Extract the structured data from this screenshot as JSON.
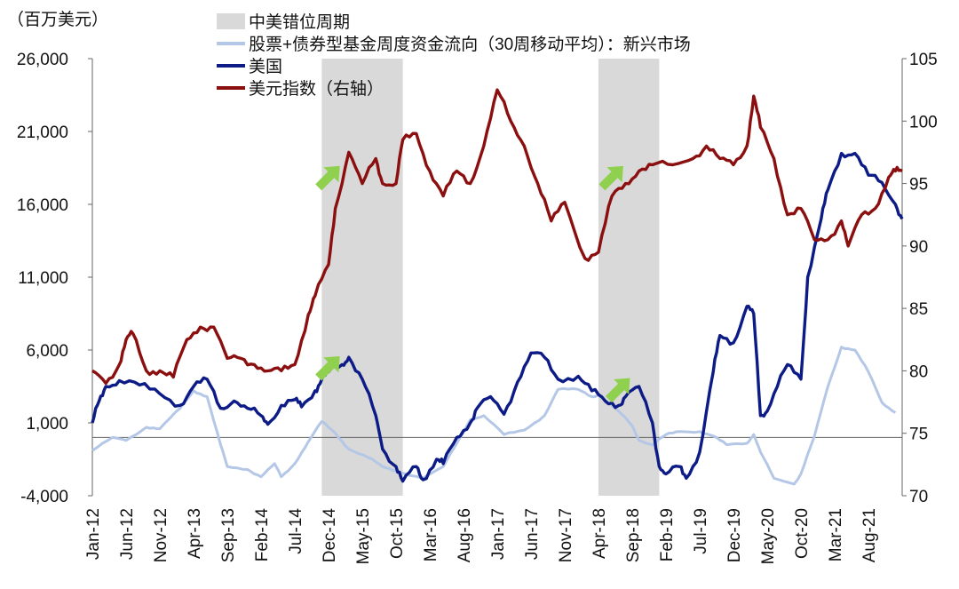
{
  "chart_data": {
    "type": "line",
    "unit_label": "（百万美元）",
    "left_axis": {
      "range": [
        -4000,
        26000
      ],
      "ticks": [
        {
          "value": 26000,
          "label": "26,000"
        },
        {
          "value": 21000,
          "label": "21,000"
        },
        {
          "value": 16000,
          "label": "16,000"
        },
        {
          "value": 11000,
          "label": "11,000"
        },
        {
          "value": 6000,
          "label": "6,000"
        },
        {
          "value": 1000,
          "label": "1,000"
        },
        {
          "value": -4000,
          "label": "-4,000"
        }
      ],
      "negative_color": "#e00000"
    },
    "right_axis": {
      "range": [
        70,
        105
      ],
      "ticks": [
        {
          "value": 105,
          "label": "105"
        },
        {
          "value": 100,
          "label": "100"
        },
        {
          "value": 95,
          "label": "95"
        },
        {
          "value": 90,
          "label": "90"
        },
        {
          "value": 85,
          "label": "85"
        },
        {
          "value": 80,
          "label": "80"
        },
        {
          "value": 75,
          "label": "75"
        },
        {
          "value": 70,
          "label": "70"
        }
      ]
    },
    "x_axis": {
      "range": [
        "2012-01",
        "2022-01"
      ],
      "ticks": [
        {
          "value": "2012-01",
          "label": "Jan-12"
        },
        {
          "value": "2012-06",
          "label": "Jun-12"
        },
        {
          "value": "2012-11",
          "label": "Nov-12"
        },
        {
          "value": "2013-04",
          "label": "Apr-13"
        },
        {
          "value": "2013-09",
          "label": "Sep-13"
        },
        {
          "value": "2014-02",
          "label": "Feb-14"
        },
        {
          "value": "2014-07",
          "label": "Jul-14"
        },
        {
          "value": "2014-12",
          "label": "Dec-14"
        },
        {
          "value": "2015-05",
          "label": "May-15"
        },
        {
          "value": "2015-10",
          "label": "Oct-15"
        },
        {
          "value": "2016-03",
          "label": "Mar-16"
        },
        {
          "value": "2016-08",
          "label": "Aug-16"
        },
        {
          "value": "2017-01",
          "label": "Jan-17"
        },
        {
          "value": "2017-06",
          "label": "Jun-17"
        },
        {
          "value": "2017-11",
          "label": "Nov-17"
        },
        {
          "value": "2018-04",
          "label": "Apr-18"
        },
        {
          "value": "2018-09",
          "label": "Sep-18"
        },
        {
          "value": "2019-02",
          "label": "Feb-19"
        },
        {
          "value": "2019-07",
          "label": "Jul-19"
        },
        {
          "value": "2019-12",
          "label": "Dec-19"
        },
        {
          "value": "2020-05",
          "label": "May-20"
        },
        {
          "value": "2020-10",
          "label": "Oct-20"
        },
        {
          "value": "2021-03",
          "label": "Mar-21"
        },
        {
          "value": "2021-08",
          "label": "Aug-21"
        }
      ]
    },
    "shaded_periods": [
      {
        "name": "中美错位周期",
        "start": "2014-11",
        "end": "2015-11"
      },
      {
        "name": "中美错位周期",
        "start": "2018-04",
        "end": "2019-01"
      }
    ],
    "legend": [
      {
        "label": "中美错位周期",
        "kind": "area",
        "color": "#d9d9d9"
      },
      {
        "label": "股票+债券型基金周度资金流向（30周移动平均）：新兴市场",
        "kind": "line",
        "color": "#b4c7e7"
      },
      {
        "label": "美国",
        "kind": "line",
        "color": "#0c1b86"
      },
      {
        "label": "美元指数（右轴）",
        "kind": "line",
        "color": "#8b0f0f"
      }
    ],
    "series": [
      {
        "name": "股票+债券型基金周度资金流向（30周移动平均）：新兴市场",
        "axis": "left",
        "color": "#b4c7e7",
        "points": [
          [
            "2012-01",
            -900
          ],
          [
            "2012-04",
            0
          ],
          [
            "2012-06",
            -200
          ],
          [
            "2012-09",
            700
          ],
          [
            "2012-11",
            600
          ],
          [
            "2013-02",
            2000
          ],
          [
            "2013-04",
            3200
          ],
          [
            "2013-06",
            2800
          ],
          [
            "2013-08",
            -500
          ],
          [
            "2013-09",
            -2000
          ],
          [
            "2013-12",
            -2200
          ],
          [
            "2014-02",
            -2700
          ],
          [
            "2014-04",
            -1800
          ],
          [
            "2014-05",
            -2700
          ],
          [
            "2014-07",
            -1800
          ],
          [
            "2014-09",
            -300
          ],
          [
            "2014-11",
            1100
          ],
          [
            "2015-01",
            300
          ],
          [
            "2015-03",
            -800
          ],
          [
            "2015-06",
            -1400
          ],
          [
            "2015-08",
            -2000
          ],
          [
            "2015-10",
            -2300
          ],
          [
            "2016-02",
            -2800
          ],
          [
            "2016-05",
            -2000
          ],
          [
            "2016-07",
            -400
          ],
          [
            "2016-09",
            1200
          ],
          [
            "2016-11",
            1500
          ],
          [
            "2017-02",
            200
          ],
          [
            "2017-05",
            500
          ],
          [
            "2017-08",
            1500
          ],
          [
            "2017-10",
            3300
          ],
          [
            "2018-01",
            3300
          ],
          [
            "2018-03",
            2800
          ],
          [
            "2018-04",
            2900
          ],
          [
            "2018-07",
            1800
          ],
          [
            "2018-09",
            800
          ],
          [
            "2018-10",
            -200
          ],
          [
            "2018-12",
            -500
          ],
          [
            "2019-02",
            200
          ],
          [
            "2019-04",
            400
          ],
          [
            "2019-07",
            400
          ],
          [
            "2019-09",
            100
          ],
          [
            "2019-11",
            -500
          ],
          [
            "2020-02",
            -400
          ],
          [
            "2020-03",
            200
          ],
          [
            "2020-04",
            -1000
          ],
          [
            "2020-06",
            -2800
          ],
          [
            "2020-09",
            -3200
          ],
          [
            "2020-10",
            -2500
          ],
          [
            "2020-12",
            100
          ],
          [
            "2021-02",
            3500
          ],
          [
            "2021-04",
            6200
          ],
          [
            "2021-06",
            6000
          ],
          [
            "2021-08",
            4500
          ],
          [
            "2021-10",
            2400
          ],
          [
            "2021-12",
            1700
          ]
        ]
      },
      {
        "name": "美国",
        "axis": "left",
        "color": "#0c1b86",
        "points": [
          [
            "2012-01",
            1000
          ],
          [
            "2012-02",
            2500
          ],
          [
            "2012-03",
            3500
          ],
          [
            "2012-05",
            3900
          ],
          [
            "2012-08",
            3600
          ],
          [
            "2012-11",
            3000
          ],
          [
            "2013-02",
            2200
          ],
          [
            "2013-04",
            3500
          ],
          [
            "2013-06",
            4000
          ],
          [
            "2013-08",
            2000
          ],
          [
            "2013-10",
            2500
          ],
          [
            "2013-12",
            2000
          ],
          [
            "2014-02",
            1500
          ],
          [
            "2014-03",
            900
          ],
          [
            "2014-05",
            2200
          ],
          [
            "2014-07",
            2600
          ],
          [
            "2014-08",
            2100
          ],
          [
            "2014-10",
            3200
          ],
          [
            "2014-11",
            4000
          ],
          [
            "2014-12",
            4500
          ],
          [
            "2015-02",
            5000
          ],
          [
            "2015-03",
            5500
          ],
          [
            "2015-05",
            4000
          ],
          [
            "2015-07",
            1500
          ],
          [
            "2015-08",
            -800
          ],
          [
            "2015-10",
            -2000
          ],
          [
            "2015-11",
            -3000
          ],
          [
            "2016-01",
            -2000
          ],
          [
            "2016-02",
            -2900
          ],
          [
            "2016-04",
            -1500
          ],
          [
            "2016-05",
            -1800
          ],
          [
            "2016-07",
            0
          ],
          [
            "2016-09",
            1000
          ],
          [
            "2016-10",
            2000
          ],
          [
            "2016-12",
            2800
          ],
          [
            "2017-02",
            1600
          ],
          [
            "2017-04",
            3800
          ],
          [
            "2017-06",
            5800
          ],
          [
            "2017-08",
            5500
          ],
          [
            "2017-10",
            4000
          ],
          [
            "2018-01",
            4200
          ],
          [
            "2018-03",
            3200
          ],
          [
            "2018-05",
            2500
          ],
          [
            "2018-07",
            2200
          ],
          [
            "2018-08",
            2800
          ],
          [
            "2018-10",
            3500
          ],
          [
            "2018-12",
            1000
          ],
          [
            "2019-01",
            -2000
          ],
          [
            "2019-02",
            -2500
          ],
          [
            "2019-04",
            -2000
          ],
          [
            "2019-05",
            -2800
          ],
          [
            "2019-07",
            -1000
          ],
          [
            "2019-09",
            4500
          ],
          [
            "2019-10",
            7000
          ],
          [
            "2019-12",
            6500
          ],
          [
            "2020-02",
            9000
          ],
          [
            "2020-03",
            8500
          ],
          [
            "2020-04",
            1500
          ],
          [
            "2020-05",
            1800
          ],
          [
            "2020-06",
            3000
          ],
          [
            "2020-08",
            5000
          ],
          [
            "2020-10",
            4000
          ],
          [
            "2020-11",
            11000
          ],
          [
            "2021-01",
            15000
          ],
          [
            "2021-02",
            17000
          ],
          [
            "2021-04",
            19500
          ],
          [
            "2021-06",
            19500
          ],
          [
            "2021-08",
            18000
          ],
          [
            "2021-10",
            17500
          ],
          [
            "2021-12",
            16000
          ],
          [
            "2022-01",
            15000
          ]
        ]
      },
      {
        "name": "美元指数（右轴）",
        "axis": "right",
        "color": "#8b0f0f",
        "points": [
          [
            "2012-01",
            80
          ],
          [
            "2012-03",
            79
          ],
          [
            "2012-05",
            80.5
          ],
          [
            "2012-06",
            82.5
          ],
          [
            "2012-07",
            83
          ],
          [
            "2012-09",
            80
          ],
          [
            "2012-11",
            80
          ],
          [
            "2013-01",
            79.5
          ],
          [
            "2013-03",
            82.5
          ],
          [
            "2013-05",
            83.5
          ],
          [
            "2013-07",
            83.5
          ],
          [
            "2013-09",
            81
          ],
          [
            "2013-11",
            81
          ],
          [
            "2014-01",
            80.5
          ],
          [
            "2014-03",
            80
          ],
          [
            "2014-05",
            80
          ],
          [
            "2014-07",
            80.5
          ],
          [
            "2014-09",
            84.5
          ],
          [
            "2014-10",
            86
          ],
          [
            "2014-12",
            88.5
          ],
          [
            "2015-01",
            93
          ],
          [
            "2015-03",
            97.5
          ],
          [
            "2015-05",
            95
          ],
          [
            "2015-07",
            97
          ],
          [
            "2015-08",
            95
          ],
          [
            "2015-10",
            95
          ],
          [
            "2015-11",
            98.5
          ],
          [
            "2016-01",
            99
          ],
          [
            "2016-03",
            96
          ],
          [
            "2016-05",
            94
          ],
          [
            "2016-07",
            96
          ],
          [
            "2016-09",
            95
          ],
          [
            "2016-11",
            98
          ],
          [
            "2017-01",
            102.5
          ],
          [
            "2017-03",
            100
          ],
          [
            "2017-05",
            98
          ],
          [
            "2017-07",
            95
          ],
          [
            "2017-09",
            92
          ],
          [
            "2017-11",
            93.5
          ],
          [
            "2018-02",
            89
          ],
          [
            "2018-04",
            89.5
          ],
          [
            "2018-06",
            94
          ],
          [
            "2018-08",
            95
          ],
          [
            "2018-10",
            96
          ],
          [
            "2018-12",
            96.5
          ],
          [
            "2019-03",
            96.5
          ],
          [
            "2019-06",
            97
          ],
          [
            "2019-08",
            98
          ],
          [
            "2019-10",
            97
          ],
          [
            "2019-12",
            96.5
          ],
          [
            "2020-02",
            98
          ],
          [
            "2020-03",
            102
          ],
          [
            "2020-04",
            99.5
          ],
          [
            "2020-06",
            97
          ],
          [
            "2020-08",
            92.5
          ],
          [
            "2020-10",
            93
          ],
          [
            "2020-12",
            90.5
          ],
          [
            "2021-02",
            90.5
          ],
          [
            "2021-04",
            92
          ],
          [
            "2021-05",
            90
          ],
          [
            "2021-07",
            92.5
          ],
          [
            "2021-09",
            93
          ],
          [
            "2021-11",
            95.5
          ],
          [
            "2021-12",
            96
          ],
          [
            "2022-01",
            96
          ]
        ]
      }
    ],
    "annotations": [
      {
        "type": "arrow",
        "color": "#8fd14f",
        "x": "2014-12",
        "y_right": 95.5
      },
      {
        "type": "arrow",
        "color": "#8fd14f",
        "x": "2014-12",
        "y_left": 4800
      },
      {
        "type": "arrow",
        "color": "#8fd14f",
        "x": "2018-06",
        "y_right": 95.5
      },
      {
        "type": "arrow",
        "color": "#8fd14f",
        "x": "2018-07",
        "y_left": 3300
      }
    ]
  }
}
